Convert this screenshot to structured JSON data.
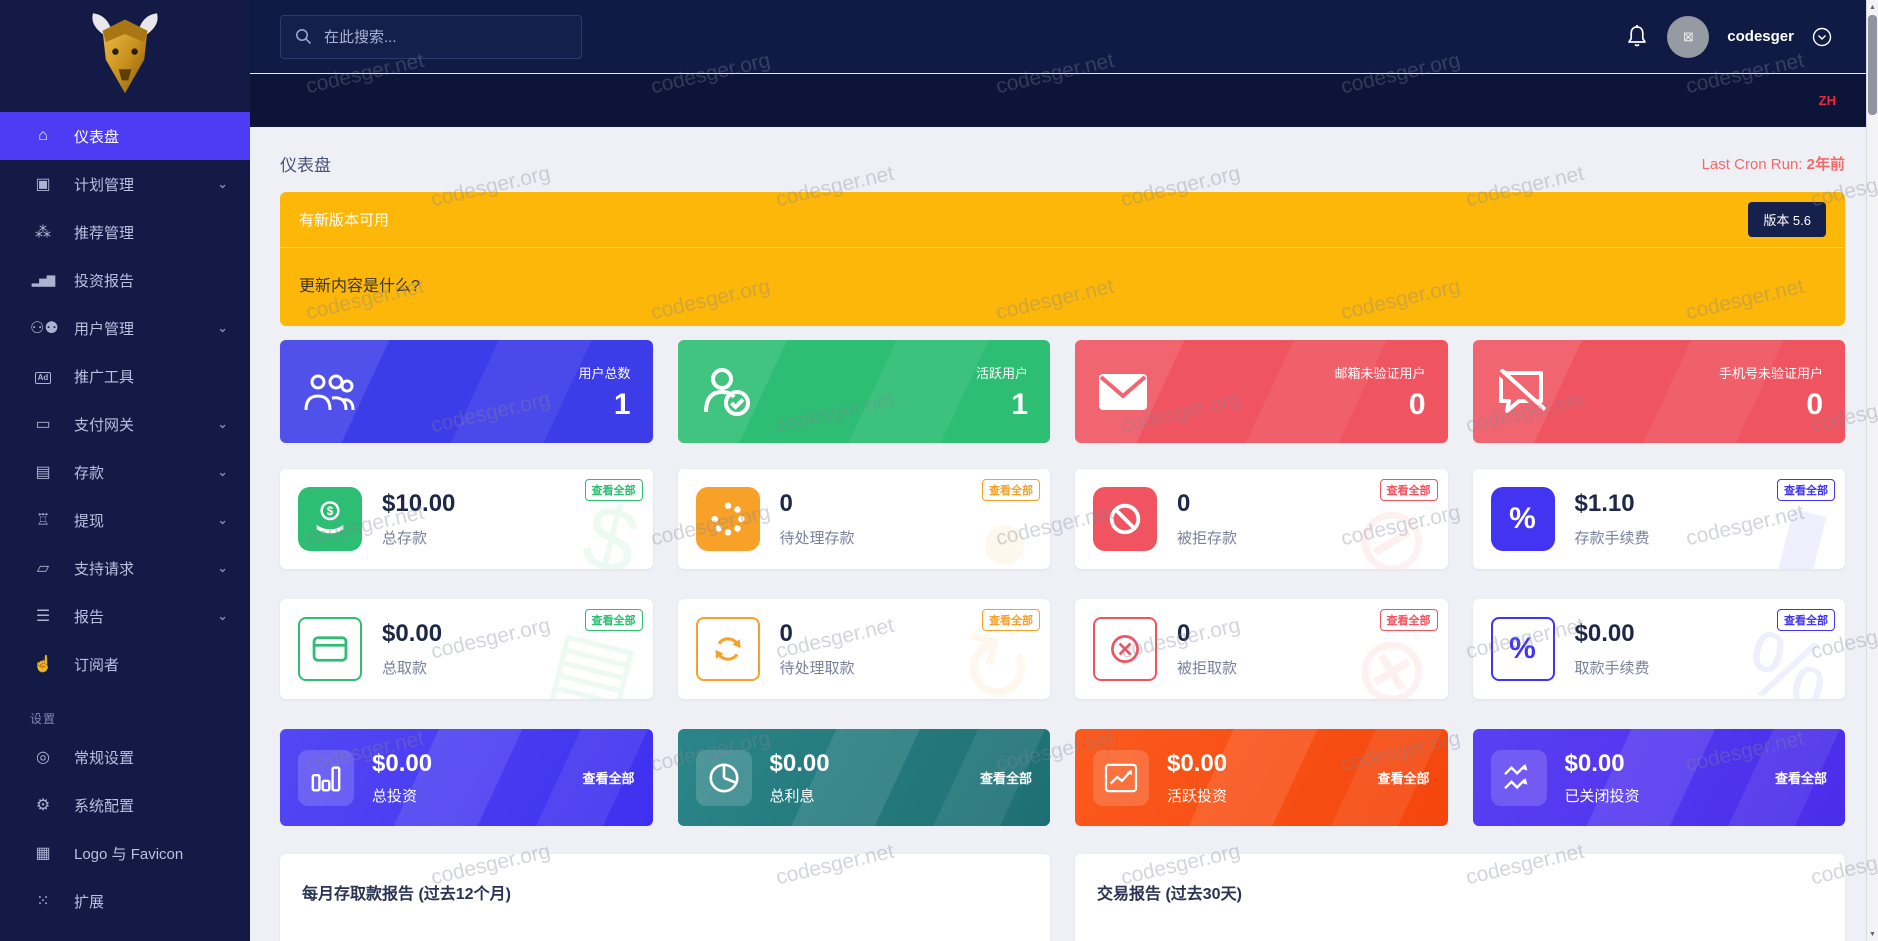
{
  "topbar": {
    "search_placeholder": "在此搜索...",
    "username": "codesger",
    "language": "ZH"
  },
  "sidebar": {
    "section_label": "设置",
    "items": [
      {
        "label": "仪表盘",
        "icon": "home-icon",
        "active": true
      },
      {
        "label": "计划管理",
        "icon": "clipboard-icon",
        "has_children": true
      },
      {
        "label": "推荐管理",
        "icon": "referral-tree-icon"
      },
      {
        "label": "投资报告",
        "icon": "bar-chart-icon"
      },
      {
        "label": "用户管理",
        "icon": "users-icon",
        "has_children": true
      },
      {
        "label": "推广工具",
        "icon": "ad-icon"
      },
      {
        "label": "支付网关",
        "icon": "credit-card-icon",
        "has_children": true
      },
      {
        "label": "存款",
        "icon": "invoice-dollar-icon",
        "has_children": true
      },
      {
        "label": "提现",
        "icon": "bank-icon",
        "has_children": true
      },
      {
        "label": "支持请求",
        "icon": "ticket-icon",
        "has_children": true
      },
      {
        "label": "报告",
        "icon": "list-icon",
        "has_children": true
      },
      {
        "label": "订阅者",
        "icon": "thumbs-up-icon"
      },
      {
        "label": "常规设置",
        "icon": "life-ring-icon"
      },
      {
        "label": "系统配置",
        "icon": "gear-icon"
      },
      {
        "label": "Logo 与 Favicon",
        "icon": "images-icon"
      },
      {
        "label": "扩展",
        "icon": "sitemap-icon"
      }
    ]
  },
  "header": {
    "title": "仪表盘",
    "cron_label": "Last Cron Run:",
    "cron_value": "2年前"
  },
  "banner": {
    "title": "有新版本可用",
    "body": "更新内容是什么?",
    "version_button": "版本 5.6"
  },
  "stat_cards": [
    {
      "label": "用户总数",
      "value": "1",
      "icon": "users-icon",
      "color": "#3c3ce9"
    },
    {
      "label": "活跃用户",
      "value": "1",
      "icon": "user-check-icon",
      "color": "#2dbd73"
    },
    {
      "label": "邮箱未验证用户",
      "value": "0",
      "icon": "envelope-icon",
      "color": "#ef5460"
    },
    {
      "label": "手机号未验证用户",
      "value": "0",
      "icon": "comment-slash-icon",
      "color": "#ef5460"
    }
  ],
  "deposit_cards": [
    {
      "value": "$10.00",
      "label": "总存款",
      "badge": "查看全部",
      "icon": "hand-holding-dollar-icon",
      "color": "#2dbd73"
    },
    {
      "value": "0",
      "label": "待处理存款",
      "badge": "查看全部",
      "icon": "spinner-icon",
      "color": "#f7a128"
    },
    {
      "value": "0",
      "label": "被拒存款",
      "badge": "查看全部",
      "icon": "ban-icon",
      "color": "#ef5460"
    },
    {
      "value": "$1.10",
      "label": "存款手续费",
      "badge": "查看全部",
      "icon": "percent-icon",
      "color": "#4334f1"
    }
  ],
  "withdraw_cards": [
    {
      "value": "$0.00",
      "label": "总取款",
      "badge": "查看全部",
      "icon": "credit-card-icon",
      "color": "#2dbd73"
    },
    {
      "value": "0",
      "label": "待处理取款",
      "badge": "查看全部",
      "icon": "sync-icon",
      "color": "#f7a128"
    },
    {
      "value": "0",
      "label": "被拒取款",
      "badge": "查看全部",
      "icon": "circle-x-icon",
      "color": "#ef5460"
    },
    {
      "value": "$0.00",
      "label": "取款手续费",
      "badge": "查看全部",
      "icon": "percent-icon",
      "color": "#4334f1"
    }
  ],
  "investment_cards": [
    {
      "value": "$0.00",
      "label": "总投资",
      "link": "查看全部",
      "icon": "bar-chart-icon",
      "color": "#4b3cf1"
    },
    {
      "value": "$0.00",
      "label": "总利息",
      "link": "查看全部",
      "icon": "pie-chart-icon",
      "color": "#237a7d"
    },
    {
      "value": "$0.00",
      "label": "活跃投资",
      "link": "查看全部",
      "icon": "chart-line-icon",
      "color": "#f8520f"
    },
    {
      "value": "$0.00",
      "label": "已关闭投资",
      "link": "查看全部",
      "icon": "analytics-icon",
      "color": "#5337ee"
    }
  ],
  "panels": [
    {
      "title": "每月存取款报告 (过去12个月)"
    },
    {
      "title": "交易报告 (过去30天)"
    }
  ],
  "watermark": {
    "texts": [
      "codesger.net",
      "codesger.org"
    ]
  },
  "colors": {
    "sidebar_bg": "#121a45",
    "topbar_bg": "#101b45",
    "active_item": "#4c3cf3",
    "content_bg": "#eff0f6",
    "banner_yellow": "#fcb708",
    "cron_text": "#f46a6a",
    "lang_badge": "#f1273f",
    "success": "#2dbd73",
    "danger": "#ef5460",
    "warning": "#f7a128",
    "indigo": "#4334f1"
  }
}
